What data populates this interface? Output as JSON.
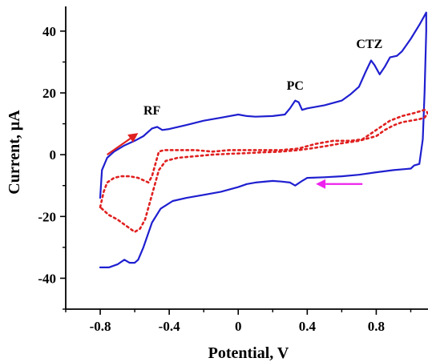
{
  "chart_data": {
    "type": "line",
    "title": "",
    "xlabel": "Potential, V",
    "ylabel": "Current, μA",
    "xlim": [
      -1.0,
      1.1
    ],
    "ylim": [
      -50,
      48
    ],
    "x_ticks": [
      -0.8,
      -0.4,
      0,
      0.4,
      0.8
    ],
    "x_tick_labels": [
      "-0.8",
      "-0.4",
      "0",
      "0.4",
      "0.8"
    ],
    "y_ticks": [
      -40,
      -20,
      0,
      20,
      40
    ],
    "y_tick_labels": [
      "-40",
      "-20",
      "0",
      "20",
      "40"
    ],
    "grid": false,
    "legend": "none",
    "series": [
      {
        "style": "solid",
        "color": "#1f1fd0",
        "points": [
          [
            -0.8,
            -14
          ],
          [
            -0.79,
            -5
          ],
          [
            -0.76,
            -1
          ],
          [
            -0.72,
            1
          ],
          [
            -0.66,
            3
          ],
          [
            -0.6,
            4.5
          ],
          [
            -0.55,
            6
          ],
          [
            -0.5,
            8.5
          ],
          [
            -0.47,
            9
          ],
          [
            -0.44,
            8
          ],
          [
            -0.4,
            8.3
          ],
          [
            -0.3,
            9.6
          ],
          [
            -0.2,
            11
          ],
          [
            -0.1,
            12
          ],
          [
            0,
            13
          ],
          [
            0.05,
            12.5
          ],
          [
            0.1,
            12.3
          ],
          [
            0.2,
            12.5
          ],
          [
            0.27,
            13
          ],
          [
            0.3,
            15
          ],
          [
            0.33,
            17.5
          ],
          [
            0.35,
            17
          ],
          [
            0.37,
            14.5
          ],
          [
            0.4,
            15
          ],
          [
            0.5,
            16
          ],
          [
            0.6,
            17.5
          ],
          [
            0.65,
            19.5
          ],
          [
            0.7,
            22
          ],
          [
            0.74,
            27
          ],
          [
            0.77,
            30.5
          ],
          [
            0.79,
            29
          ],
          [
            0.82,
            26
          ],
          [
            0.85,
            28.5
          ],
          [
            0.88,
            31.5
          ],
          [
            0.92,
            32
          ],
          [
            0.95,
            33.5
          ],
          [
            1.0,
            37.5
          ],
          [
            1.05,
            42
          ],
          [
            1.09,
            46
          ],
          [
            1.09,
            40
          ],
          [
            1.08,
            20
          ],
          [
            1.07,
            5
          ],
          [
            1.05,
            -3
          ],
          [
            1.02,
            -3.5
          ],
          [
            1.0,
            -4.5
          ],
          [
            0.9,
            -5
          ],
          [
            0.8,
            -5.7
          ],
          [
            0.7,
            -6.5
          ],
          [
            0.6,
            -7
          ],
          [
            0.5,
            -7.3
          ],
          [
            0.4,
            -7.5
          ],
          [
            0.37,
            -8.5
          ],
          [
            0.33,
            -10
          ],
          [
            0.3,
            -9
          ],
          [
            0.25,
            -8.7
          ],
          [
            0.2,
            -8.5
          ],
          [
            0.1,
            -9
          ],
          [
            0.05,
            -9.5
          ],
          [
            0,
            -10.5
          ],
          [
            -0.1,
            -12
          ],
          [
            -0.2,
            -13
          ],
          [
            -0.3,
            -14
          ],
          [
            -0.38,
            -15
          ],
          [
            -0.45,
            -17.5
          ],
          [
            -0.5,
            -22
          ],
          [
            -0.55,
            -30
          ],
          [
            -0.58,
            -34
          ],
          [
            -0.6,
            -35
          ],
          [
            -0.63,
            -35
          ],
          [
            -0.66,
            -34
          ],
          [
            -0.7,
            -35.5
          ],
          [
            -0.75,
            -36.5
          ],
          [
            -0.8,
            -36.5
          ]
        ]
      },
      {
        "style": "dotted",
        "color": "#e02020",
        "points": [
          [
            -0.8,
            -17
          ],
          [
            -0.78,
            -12
          ],
          [
            -0.76,
            -9
          ],
          [
            -0.72,
            -7.5
          ],
          [
            -0.68,
            -7
          ],
          [
            -0.63,
            -7
          ],
          [
            -0.58,
            -7.5
          ],
          [
            -0.52,
            -9
          ],
          [
            -0.5,
            -7
          ],
          [
            -0.48,
            -3
          ],
          [
            -0.46,
            1
          ],
          [
            -0.43,
            1.5
          ],
          [
            -0.35,
            1.5
          ],
          [
            -0.25,
            1.5
          ],
          [
            -0.15,
            1
          ],
          [
            -0.05,
            1.5
          ],
          [
            0.05,
            1.5
          ],
          [
            0.15,
            1.5
          ],
          [
            0.25,
            1.5
          ],
          [
            0.35,
            2
          ],
          [
            0.45,
            3.5
          ],
          [
            0.55,
            4.5
          ],
          [
            0.65,
            4.5
          ],
          [
            0.72,
            5
          ],
          [
            0.8,
            8
          ],
          [
            0.88,
            11
          ],
          [
            0.95,
            12.5
          ],
          [
            1.02,
            13.5
          ],
          [
            1.08,
            14.5
          ],
          [
            1.1,
            13.5
          ],
          [
            1.08,
            12
          ],
          [
            1.05,
            11.5
          ],
          [
            1.0,
            11
          ],
          [
            0.95,
            10.5
          ],
          [
            0.9,
            9.5
          ],
          [
            0.85,
            8
          ],
          [
            0.8,
            6
          ],
          [
            0.7,
            4.5
          ],
          [
            0.6,
            3.7
          ],
          [
            0.5,
            2.7
          ],
          [
            0.42,
            2
          ],
          [
            0.35,
            1.5
          ],
          [
            0.25,
            1
          ],
          [
            0.15,
            0.8
          ],
          [
            0.05,
            0.5
          ],
          [
            -0.05,
            0.3
          ],
          [
            -0.15,
            0
          ],
          [
            -0.25,
            -0.5
          ],
          [
            -0.35,
            -1
          ],
          [
            -0.42,
            -2
          ],
          [
            -0.46,
            -5
          ],
          [
            -0.5,
            -13
          ],
          [
            -0.54,
            -21
          ],
          [
            -0.57,
            -24
          ],
          [
            -0.6,
            -25
          ],
          [
            -0.65,
            -23
          ],
          [
            -0.7,
            -21
          ],
          [
            -0.75,
            -19.5
          ],
          [
            -0.8,
            -17
          ]
        ]
      }
    ],
    "annotations": [
      {
        "text": "RF",
        "x": -0.5,
        "y": 13
      },
      {
        "text": "PC",
        "x": 0.33,
        "y": 21
      },
      {
        "text": "CTZ",
        "x": 0.76,
        "y": 34.5
      }
    ],
    "arrows": [
      {
        "color": "#e02020",
        "from": [
          -0.76,
          0
        ],
        "to": [
          -0.58,
          7
        ]
      },
      {
        "color": "#ee22ee",
        "from": [
          0.72,
          -9.5
        ],
        "to": [
          0.45,
          -9.5
        ]
      }
    ]
  }
}
